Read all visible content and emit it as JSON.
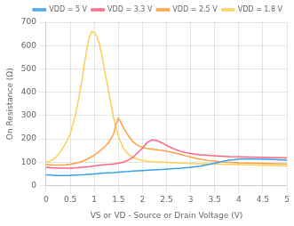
{
  "chart_data": {
    "type": "line",
    "x_label": "VS or VD - Source or Drain Voltage (V)",
    "y_label": "On Resistance (Ω)",
    "xlim": [
      0,
      5
    ],
    "ylim": [
      0,
      700
    ],
    "xticks": [
      0,
      0.5,
      1,
      1.5,
      2,
      2.5,
      3,
      3.5,
      4,
      4.5,
      5
    ],
    "yticks": [
      0,
      100,
      200,
      300,
      400,
      500,
      600,
      700
    ],
    "grid": true,
    "legend": "upper right",
    "series": [
      {
        "name": "VDD = 5 V",
        "x": [
          0.0,
          0.1,
          0.2,
          0.3,
          0.4,
          0.5,
          0.6,
          0.7,
          0.8,
          0.9,
          1.0,
          1.1,
          1.2,
          1.3,
          1.4,
          1.5,
          1.6,
          1.7,
          1.8,
          1.9,
          2.0,
          2.2,
          2.4,
          2.6,
          2.8,
          3.0,
          3.2,
          3.4,
          3.5,
          3.6,
          3.7,
          3.8,
          3.9,
          4.0,
          4.2,
          4.4,
          4.6,
          4.8,
          5.0
        ],
        "values": [
          45,
          44,
          43,
          43,
          43,
          43,
          44,
          45,
          46,
          48,
          49,
          51,
          53,
          54,
          55,
          57,
          59,
          60,
          62,
          63,
          64,
          66,
          68,
          71,
          74,
          78,
          83,
          91,
          95,
          100,
          105,
          108,
          110,
          113,
          114,
          113,
          112,
          110,
          108
        ]
      },
      {
        "name": "VDD = 3.3 V",
        "x": [
          0.0,
          0.1,
          0.2,
          0.3,
          0.4,
          0.5,
          0.6,
          0.7,
          0.8,
          0.9,
          1.0,
          1.1,
          1.2,
          1.3,
          1.4,
          1.5,
          1.6,
          1.7,
          1.8,
          1.9,
          2.0,
          2.1,
          2.2,
          2.3,
          2.4,
          2.5,
          2.6,
          2.7,
          2.8,
          2.9,
          3.0,
          3.2,
          3.4,
          3.6,
          3.8,
          4.0,
          4.2,
          4.4,
          4.6,
          4.8,
          5.0
        ],
        "values": [
          78,
          76,
          75,
          74,
          74,
          74,
          75,
          77,
          79,
          81,
          84,
          86,
          88,
          90,
          92,
          95,
          100,
          108,
          120,
          140,
          160,
          185,
          195,
          192,
          183,
          172,
          162,
          153,
          146,
          141,
          137,
          131,
          128,
          126,
          124,
          123,
          122,
          121,
          120,
          119,
          118
        ]
      },
      {
        "name": "VDD = 2.5 V",
        "x": [
          0.0,
          0.1,
          0.2,
          0.3,
          0.4,
          0.5,
          0.6,
          0.7,
          0.8,
          0.9,
          1.0,
          1.1,
          1.2,
          1.3,
          1.4,
          1.45,
          1.5,
          1.55,
          1.6,
          1.7,
          1.8,
          1.9,
          2.0,
          2.1,
          2.2,
          2.3,
          2.4,
          2.5,
          2.6,
          2.7,
          2.8,
          2.9,
          3.0,
          3.2,
          3.4,
          3.6,
          3.8,
          4.0,
          4.2,
          4.4,
          4.6,
          4.8,
          5.0
        ],
        "values": [
          90,
          88,
          87,
          87,
          88,
          91,
          95,
          100,
          108,
          118,
          130,
          145,
          163,
          185,
          220,
          260,
          288,
          270,
          250,
          215,
          188,
          172,
          163,
          158,
          155,
          153,
          150,
          147,
          143,
          138,
          133,
          127,
          122,
          112,
          106,
          102,
          99,
          97,
          96,
          95,
          94,
          93,
          92
        ]
      },
      {
        "name": "VDD = 1.8 V",
        "x": [
          0.0,
          0.1,
          0.2,
          0.3,
          0.4,
          0.5,
          0.6,
          0.65,
          0.7,
          0.75,
          0.8,
          0.85,
          0.9,
          0.95,
          1.0,
          1.05,
          1.1,
          1.15,
          1.2,
          1.25,
          1.3,
          1.35,
          1.4,
          1.5,
          1.6,
          1.7,
          1.8,
          1.9,
          2.0,
          2.1,
          2.2,
          2.3,
          2.4,
          2.5,
          2.6,
          2.7,
          2.8,
          2.9,
          3.0,
          3.2,
          3.4,
          3.6,
          3.8,
          4.0,
          4.2,
          4.4,
          4.6,
          4.8,
          5.0
        ],
        "values": [
          100,
          106,
          120,
          145,
          178,
          222,
          295,
          345,
          400,
          460,
          530,
          590,
          640,
          660,
          655,
          640,
          610,
          565,
          510,
          455,
          400,
          345,
          290,
          210,
          160,
          135,
          120,
          112,
          107,
          104,
          102,
          101,
          100,
          99,
          98,
          97,
          96,
          95,
          94,
          93,
          92,
          91,
          90,
          89,
          88,
          87,
          86,
          85,
          84
        ]
      }
    ]
  }
}
